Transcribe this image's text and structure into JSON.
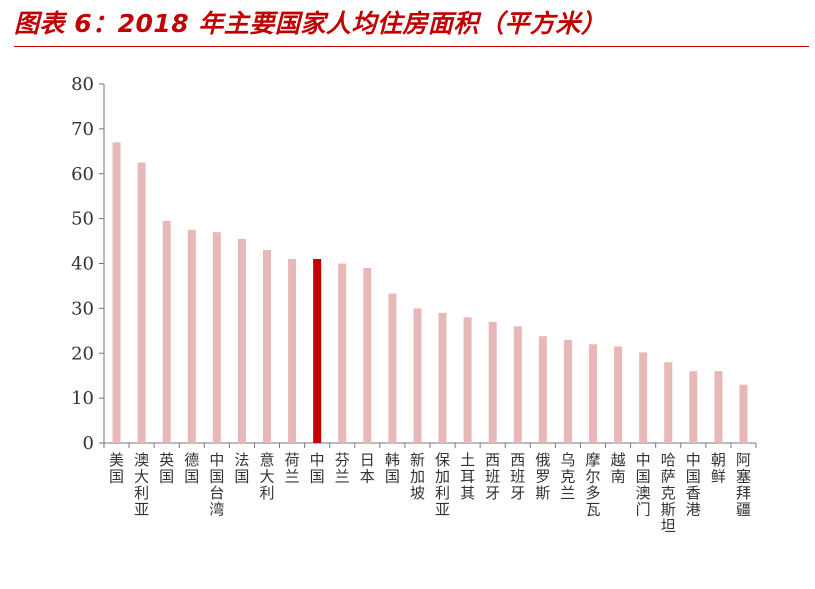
{
  "header": {
    "title": "图表 6：2018 年主要国家人均住房面积（平方米）",
    "accent_color": "#c00000"
  },
  "chart_data": {
    "type": "bar",
    "title": "图表 6：2018 年主要国家人均住房面积（平方米）",
    "xlabel": "",
    "ylabel": "",
    "ylim": [
      0,
      80
    ],
    "yticks": [
      0,
      10,
      20,
      30,
      40,
      50,
      60,
      70,
      80
    ],
    "grid": false,
    "legend": "none",
    "categories": [
      "美国",
      "澳大利亚",
      "英国",
      "德国",
      "中国台湾",
      "法国",
      "意大利",
      "荷兰",
      "中国",
      "芬兰",
      "日本",
      "韩国",
      "新加坡",
      "保加利亚",
      "土耳其",
      "西班牙",
      "西班牙",
      "俄罗斯",
      "乌克兰",
      "摩尔多瓦",
      "越南",
      "中国澳门",
      "哈萨克斯坦",
      "中国香港",
      "朝鲜",
      "阿塞拜疆"
    ],
    "values": [
      67,
      62.5,
      49.5,
      47.5,
      47,
      45.5,
      43,
      41,
      41,
      40,
      39,
      33.3,
      30,
      29,
      28,
      27,
      26,
      23.8,
      23,
      22,
      21.5,
      20.2,
      18,
      16,
      16,
      13
    ],
    "colors": {
      "default": "#e6b9b8",
      "highlight": "#c00000"
    },
    "highlight_category": "中国"
  }
}
